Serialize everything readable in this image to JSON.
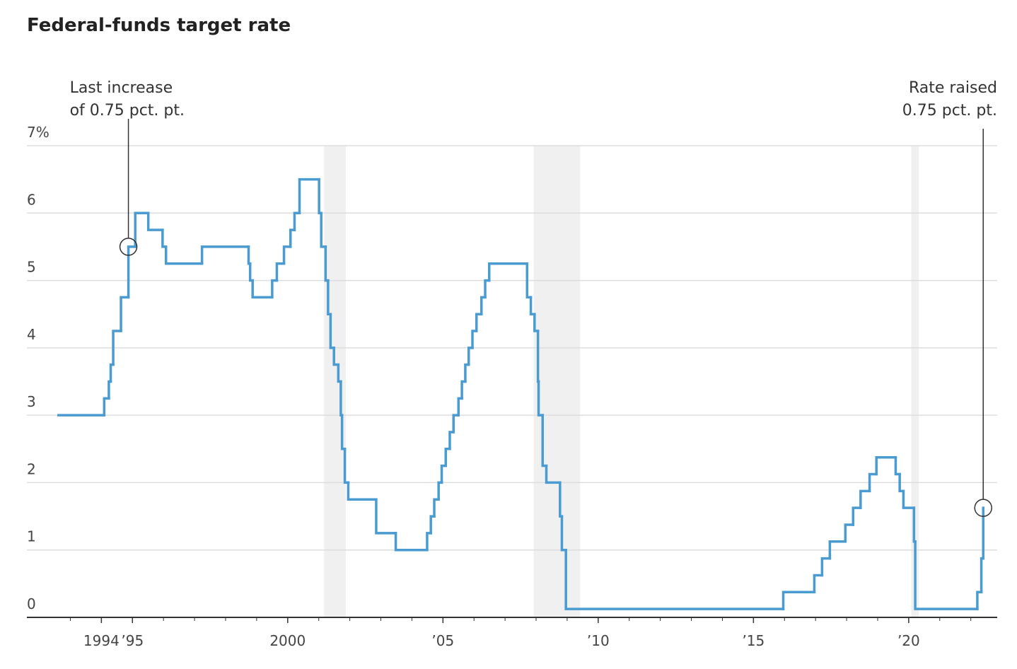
{
  "chart_data": {
    "type": "step",
    "title": "Federal-funds target rate",
    "color": "#4a9bd1",
    "x": [
      1992.62,
      1994.09,
      1994.24,
      1994.3,
      1994.38,
      1994.63,
      1994.87,
      1995.09,
      1995.51,
      1995.97,
      1996.08,
      1997.24,
      1998.74,
      1998.79,
      1998.87,
      1999.5,
      1999.65,
      1999.88,
      2000.09,
      2000.22,
      2000.38,
      2001.01,
      2001.08,
      2001.22,
      2001.3,
      2001.38,
      2001.49,
      2001.63,
      2001.71,
      2001.75,
      2001.84,
      2001.95,
      2002.85,
      2003.48,
      2004.49,
      2004.61,
      2004.72,
      2004.86,
      2004.96,
      2005.09,
      2005.22,
      2005.34,
      2005.5,
      2005.61,
      2005.72,
      2005.83,
      2005.95,
      2006.08,
      2006.24,
      2006.36,
      2006.49,
      2007.71,
      2007.83,
      2007.95,
      2008.06,
      2008.08,
      2008.21,
      2008.33,
      2008.77,
      2008.83,
      2008.96,
      2015.96,
      2016.96,
      2017.21,
      2017.46,
      2017.96,
      2018.21,
      2018.45,
      2018.74,
      2018.96,
      2019.58,
      2019.71,
      2019.83,
      2020.17,
      2020.21,
      2022.21,
      2022.34,
      2022.4
    ],
    "values": [
      3.0,
      3.25,
      3.5,
      3.75,
      4.25,
      4.75,
      5.5,
      6.0,
      5.75,
      5.5,
      5.25,
      5.5,
      5.25,
      5.0,
      4.75,
      5.0,
      5.25,
      5.5,
      5.75,
      6.0,
      6.5,
      6.0,
      5.5,
      5.0,
      4.5,
      4.0,
      3.75,
      3.5,
      3.0,
      2.5,
      2.0,
      1.75,
      1.25,
      1.0,
      1.25,
      1.5,
      1.75,
      2.0,
      2.25,
      2.5,
      2.75,
      3.0,
      3.25,
      3.5,
      3.75,
      4.0,
      4.25,
      4.5,
      4.75,
      5.0,
      5.25,
      4.75,
      4.5,
      4.25,
      3.5,
      3.0,
      2.25,
      2.0,
      1.5,
      1.0,
      0.125,
      0.375,
      0.625,
      0.875,
      1.125,
      1.375,
      1.625,
      1.875,
      2.125,
      2.375,
      2.125,
      1.875,
      1.625,
      1.125,
      0.125,
      0.375,
      0.875,
      1.625
    ],
    "recessions": [
      [
        2001.17,
        2001.87
      ],
      [
        2007.92,
        2009.42
      ],
      [
        2020.08,
        2020.33
      ]
    ],
    "xlim": [
      1991.6,
      2022.85
    ],
    "xticks": [
      {
        "value": 1994,
        "label": "1994"
      },
      {
        "value": 1995,
        "label": "’95"
      },
      {
        "value": 2000,
        "label": "2000"
      },
      {
        "value": 2005,
        "label": "’05"
      },
      {
        "value": 2010,
        "label": "’10"
      },
      {
        "value": 2015,
        "label": "’15"
      },
      {
        "value": 2020,
        "label": "’20"
      }
    ],
    "xminorticks": [
      1993,
      1996,
      1997,
      1998,
      1999,
      2001,
      2002,
      2003,
      2004,
      2006,
      2007,
      2008,
      2009,
      2011,
      2012,
      2013,
      2014,
      2016,
      2017,
      2018,
      2019,
      2021,
      2022
    ],
    "ylim": [
      0,
      7
    ],
    "yticks": [
      0,
      1,
      2,
      3,
      4,
      5,
      6,
      {
        "value": 7,
        "label": "7%"
      }
    ],
    "grid": true,
    "annotations": [
      {
        "lines": [
          "Last increase",
          "of 0.75 pct. pt."
        ],
        "x": 1994.87,
        "y": 5.5,
        "align": "left"
      },
      {
        "lines": [
          "Rate raised",
          "0.75 pct. pt."
        ],
        "x": 2022.4,
        "y": 1.625,
        "align": "right"
      }
    ]
  }
}
